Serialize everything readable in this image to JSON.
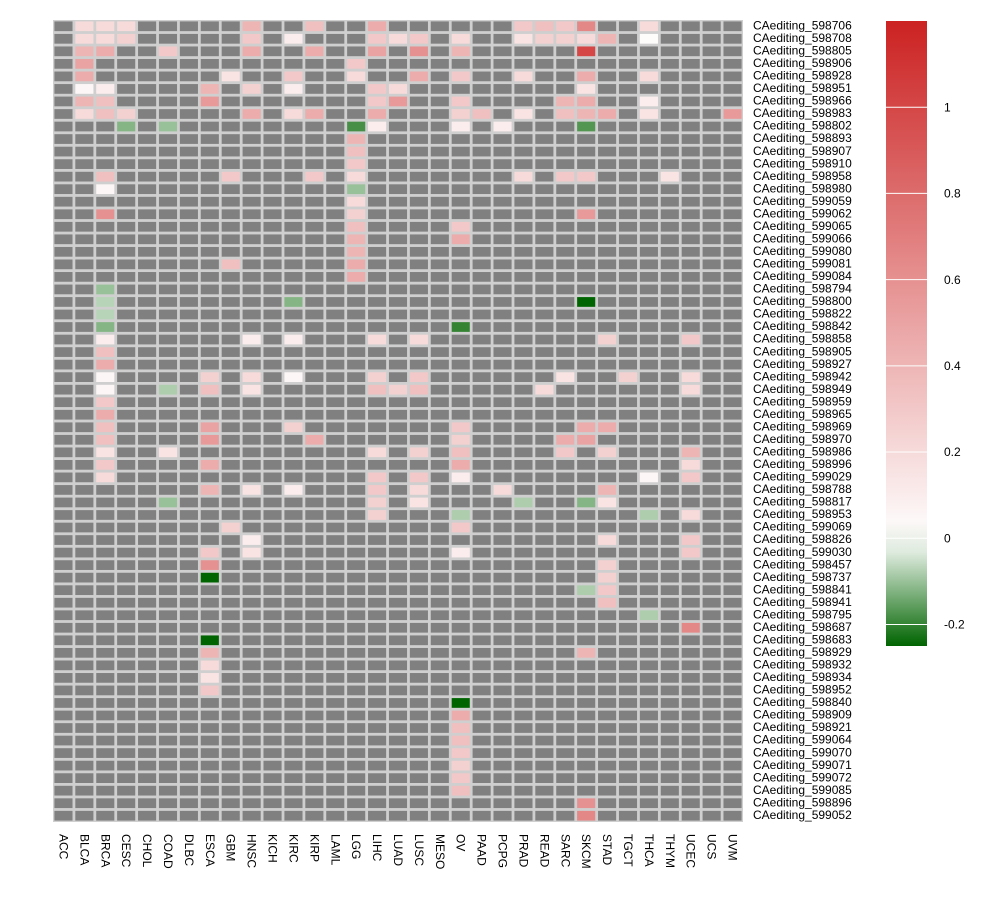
{
  "chart_data": {
    "type": "heatmap",
    "title": "",
    "columns": [
      "ACC",
      "BLCA",
      "BRCA",
      "CESC",
      "CHOL",
      "COAD",
      "DLBC",
      "ESCA",
      "GBM",
      "HNSC",
      "KICH",
      "KIRC",
      "KIRP",
      "LAML",
      "LGG",
      "LIHC",
      "LUAD",
      "LUSC",
      "MESO",
      "OV",
      "PAAD",
      "PCPG",
      "PRAD",
      "READ",
      "SARC",
      "SKCM",
      "STAD",
      "TGCT",
      "THCA",
      "THYM",
      "UCEC",
      "UCS",
      "UVM"
    ],
    "rows": [
      "CAediting_598706",
      "CAediting_598708",
      "CAediting_598805",
      "CAediting_598906",
      "CAediting_598928",
      "CAediting_598951",
      "CAediting_598966",
      "CAediting_598983",
      "CAediting_598802",
      "CAediting_598893",
      "CAediting_598907",
      "CAediting_598910",
      "CAediting_598958",
      "CAediting_598980",
      "CAediting_599059",
      "CAediting_599062",
      "CAediting_599065",
      "CAediting_599066",
      "CAediting_599080",
      "CAediting_599081",
      "CAediting_599084",
      "CAediting_598794",
      "CAediting_598800",
      "CAediting_598822",
      "CAediting_598842",
      "CAediting_598858",
      "CAediting_598905",
      "CAediting_598927",
      "CAediting_598942",
      "CAediting_598949",
      "CAediting_598959",
      "CAediting_598965",
      "CAediting_598969",
      "CAediting_598970",
      "CAediting_598986",
      "CAediting_598996",
      "CAediting_599029",
      "CAediting_598788",
      "CAediting_598817",
      "CAediting_598953",
      "CAediting_599069",
      "CAediting_598826",
      "CAediting_599030",
      "CAediting_598457",
      "CAediting_598737",
      "CAediting_598841",
      "CAediting_598941",
      "CAediting_598795",
      "CAediting_598687",
      "CAediting_598683",
      "CAediting_598929",
      "CAediting_598932",
      "CAediting_598934",
      "CAediting_598952",
      "CAediting_598840",
      "CAediting_598909",
      "CAediting_598921",
      "CAediting_599064",
      "CAediting_599070",
      "CAediting_599071",
      "CAediting_599072",
      "CAediting_599085",
      "CAediting_598896",
      "CAediting_599052"
    ],
    "missing_color": "#808080",
    "colorbar": {
      "min": -0.25,
      "max": 1.2,
      "ticks": [
        "-0.2",
        "0",
        "0.2",
        "0.4",
        "0.6",
        "0.8",
        "1"
      ],
      "colors": {
        "low": "#006400",
        "mid": "#ffffff",
        "high": "#cc2222"
      }
    },
    "cells": {
      "CAediting_598706": {
        "BLCA": 0.2,
        "BRCA": 0.2,
        "CESC": 0.2,
        "HNSC": 0.4,
        "KIRP": 0.35,
        "LIHC": 0.45,
        "PRAD": 0.3,
        "READ": 0.35,
        "SARC": 0.3,
        "SKCM": 0.65,
        "THCA": 0.2
      },
      "CAediting_598708": {
        "BLCA": 0.2,
        "BRCA": 0.2,
        "CESC": 0.25,
        "HNSC": 0.3,
        "KIRC": 0.1,
        "LIHC": 0.3,
        "LUAD": 0.2,
        "LUSC": 0.3,
        "OV": 0.2,
        "PRAD": 0.15,
        "READ": 0.25,
        "SARC": 0.25,
        "SKCM": 0.2,
        "STAD": 0.4,
        "THCA": 0.02
      },
      "CAediting_598805": {
        "BLCA": 0.4,
        "BRCA": 0.45,
        "COAD": 0.3,
        "HNSC": 0.45,
        "KIRP": 0.45,
        "LIHC": 0.5,
        "LUSC": 0.6,
        "OV": 0.4,
        "SKCM": 1.0
      },
      "CAediting_598906": {
        "BLCA": 0.5,
        "LGG": 0.3
      },
      "CAediting_598928": {
        "BLCA": 0.45,
        "GBM": 0.15,
        "KIRC": 0.3,
        "LGG": 0.2,
        "LUSC": 0.45,
        "OV": 0.3,
        "PRAD": 0.2,
        "SKCM": 0.45,
        "THCA": 0.2
      },
      "CAediting_598951": {
        "BLCA": 0.05,
        "BRCA": 0.1,
        "ESCA": 0.4,
        "HNSC": 0.25,
        "KIRC": 0.1,
        "LIHC": 0.3,
        "LUAD": 0.2,
        "SKCM": 0.15
      },
      "CAediting_598966": {
        "BLCA": 0.4,
        "BRCA": 0.35,
        "ESCA": 0.55,
        "LIHC": 0.3,
        "LUAD": 0.55,
        "OV": 0.3,
        "SARC": 0.4,
        "SKCM": 0.45,
        "THCA": 0.1
      },
      "CAediting_598983": {
        "BLCA": 0.2,
        "BRCA": 0.35,
        "CESC": 0.25,
        "HNSC": 0.45,
        "KIRC": 0.2,
        "KIRP": 0.45,
        "LIHC": 0.45,
        "OV": 0.25,
        "PAAD": 0.35,
        "PRAD": 0.15,
        "SARC": 0.35,
        "SKCM": 0.4,
        "STAD": 0.45,
        "THCA": 0.15,
        "UVM": 0.55
      },
      "CAediting_598802": {
        "CESC": -0.12,
        "COAD": -0.1,
        "LGG": -0.18,
        "LIHC": 0.1,
        "OV": 0.1,
        "PCPG": 0.1,
        "SKCM": -0.17
      },
      "CAediting_598893": {
        "LGG": 0.4
      },
      "CAediting_598907": {
        "LGG": 0.35
      },
      "CAediting_598910": {
        "LGG": 0.3
      },
      "CAediting_598958": {
        "BRCA": 0.35,
        "GBM": 0.3,
        "KIRP": 0.3,
        "LGG": 0.2,
        "PRAD": 0.2,
        "SARC": 0.3,
        "SKCM": 0.3,
        "THYM": 0.15
      },
      "CAediting_598980": {
        "BRCA": 0.05,
        "LGG": -0.1
      },
      "CAediting_599059": {
        "LGG": 0.2
      },
      "CAediting_599062": {
        "BRCA": 0.6,
        "LGG": 0.25,
        "SKCM": 0.55
      },
      "CAediting_599065": {
        "LGG": 0.35,
        "OV": 0.3
      },
      "CAediting_599066": {
        "LGG": 0.4,
        "OV": 0.45
      },
      "CAediting_599080": {
        "LGG": 0.4
      },
      "CAediting_599081": {
        "GBM": 0.35,
        "LGG": 0.45
      },
      "CAediting_599084": {
        "LGG": 0.45
      },
      "CAediting_598794": {
        "BRCA": -0.1
      },
      "CAediting_598800": {
        "BRCA": -0.07,
        "KIRC": -0.12,
        "SKCM": -0.25
      },
      "CAediting_598822": {
        "BRCA": -0.07
      },
      "CAediting_598842": {
        "BRCA": -0.12,
        "OV": -0.2
      },
      "CAediting_598858": {
        "BRCA": 0.1,
        "HNSC": 0.1,
        "KIRC": 0.1,
        "LIHC": 0.2,
        "LUSC": 0.2,
        "STAD": 0.25,
        "UCEC": 0.3
      },
      "CAediting_598905": {
        "BRCA": 0.35
      },
      "CAediting_598927": {
        "BRCA": 0.45
      },
      "CAediting_598942": {
        "BRCA": 0.05,
        "ESCA": 0.25,
        "HNSC": 0.2,
        "KIRC": 0.05,
        "LIHC": 0.25,
        "LUSC": 0.3,
        "SARC": 0.15,
        "TGCT": 0.25,
        "UCEC": 0.2
      },
      "CAediting_598949": {
        "BRCA": 0.05,
        "COAD": -0.08,
        "ESCA": 0.35,
        "HNSC": 0.15,
        "LIHC": 0.35,
        "LUAD": 0.25,
        "LUSC": 0.35,
        "READ": 0.2,
        "UCEC": 0.2
      },
      "CAediting_598959": {
        "BRCA": 0.3
      },
      "CAediting_598965": {
        "BRCA": 0.45
      },
      "CAediting_598969": {
        "BRCA": 0.35,
        "ESCA": 0.5,
        "KIRC": 0.25,
        "OV": 0.3,
        "SKCM": 0.45,
        "STAD": 0.45
      },
      "CAediting_598970": {
        "BRCA": 0.35,
        "ESCA": 0.55,
        "KIRP": 0.45,
        "OV": 0.25,
        "SARC": 0.45,
        "SKCM": 0.5
      },
      "CAediting_598986": {
        "BRCA": 0.15,
        "COAD": 0.15,
        "LIHC": 0.2,
        "LUSC": 0.25,
        "OV": 0.35,
        "SARC": 0.3,
        "STAD": 0.25,
        "UCEC": 0.4
      },
      "CAediting_598996": {
        "BRCA": 0.3,
        "ESCA": 0.45,
        "OV": 0.45,
        "UCEC": 0.2
      },
      "CAediting_599029": {
        "BRCA": 0.2,
        "LIHC": 0.3,
        "LUSC": 0.3,
        "OV": 0.1,
        "THCA": 0.05,
        "UCEC": 0.3
      },
      "CAediting_598788": {
        "ESCA": 0.4,
        "HNSC": 0.15,
        "KIRC": 0.1,
        "LIHC": 0.3,
        "LUSC": 0.2,
        "PCPG": 0.2,
        "STAD": 0.4
      },
      "CAediting_598817": {
        "COAD": -0.1,
        "LIHC": 0.25,
        "LUSC": 0.15,
        "PRAD": -0.08,
        "SKCM": -0.12,
        "STAD": 0.15
      },
      "CAediting_598953": {
        "LIHC": 0.25,
        "OV": -0.08,
        "THCA": -0.08,
        "UCEC": 0.2
      },
      "CAediting_599069": {
        "GBM": 0.25,
        "OV": 0.3
      },
      "CAediting_598826": {
        "HNSC": 0.1,
        "STAD": 0.2,
        "UCEC": 0.3
      },
      "CAediting_599030": {
        "ESCA": 0.3,
        "HNSC": 0.15,
        "OV": 0.1,
        "UCEC": 0.3
      },
      "CAediting_598457": {
        "ESCA": 0.6,
        "STAD": 0.25
      },
      "CAediting_598737": {
        "ESCA": -0.25,
        "STAD": 0.25
      },
      "CAediting_598841": {
        "SKCM": -0.08,
        "STAD": 0.3
      },
      "CAediting_598941": {
        "STAD": 0.35
      },
      "CAediting_598795": {
        "THCA": -0.08
      },
      "CAediting_598687": {
        "UCEC": 0.65
      },
      "CAediting_598683": {
        "ESCA": -0.25
      },
      "CAediting_598929": {
        "ESCA": 0.4,
        "SKCM": 0.4
      },
      "CAediting_598932": {
        "ESCA": 0.2
      },
      "CAediting_598934": {
        "ESCA": 0.15
      },
      "CAediting_598952": {
        "ESCA": 0.3
      },
      "CAediting_598840": {
        "OV": -0.25
      },
      "CAediting_598909": {
        "OV": 0.45
      },
      "CAediting_598921": {
        "OV": 0.35
      },
      "CAediting_599064": {
        "OV": 0.35
      },
      "CAediting_599070": {
        "OV": 0.3
      },
      "CAediting_599071": {
        "OV": 0.25
      },
      "CAediting_599072": {
        "OV": 0.3
      },
      "CAediting_599085": {
        "OV": 0.35
      },
      "CAediting_598896": {
        "SKCM": 0.6
      },
      "CAediting_599052": {
        "SKCM": 0.65
      }
    }
  }
}
